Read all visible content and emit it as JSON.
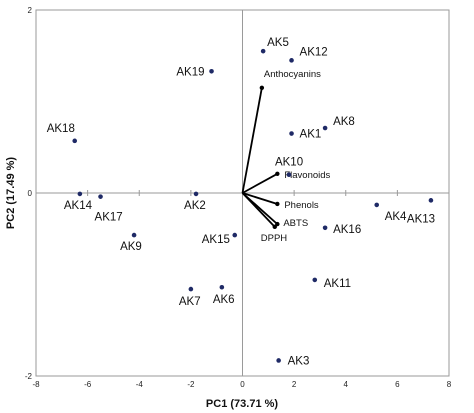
{
  "chart_data": {
    "type": "scatter",
    "subtype": "pca-biplot",
    "xlabel": "PC1 (73.71 %)",
    "ylabel": "PC2 (17.49 %)",
    "xlim": [
      -8,
      8
    ],
    "ylim": [
      -2,
      2
    ],
    "xticks": [
      "-8",
      "-6",
      "-4",
      "-2",
      "0",
      "2",
      "4",
      "6",
      "8"
    ],
    "yticks": [
      "2",
      "0",
      "-2"
    ],
    "x_axis_ticks_at": [
      -8,
      -6,
      -4,
      -2,
      0,
      2,
      4,
      6,
      8
    ],
    "y_axis_ticks_at": [
      2,
      0,
      -2
    ],
    "grid": false,
    "point_color": "#1f2a66",
    "vector_color": "#000000",
    "scores": [
      {
        "label": "AK5",
        "x": 0.8,
        "y": 1.55
      },
      {
        "label": "AK12",
        "x": 1.9,
        "y": 1.45
      },
      {
        "label": "AK19",
        "x": -1.2,
        "y": 1.33
      },
      {
        "label": "AK18",
        "x": -6.5,
        "y": 0.57
      },
      {
        "label": "AK1",
        "x": 1.9,
        "y": 0.65
      },
      {
        "label": "AK8",
        "x": 3.2,
        "y": 0.71
      },
      {
        "label": "AK10",
        "x": 1.8,
        "y": 0.2
      },
      {
        "label": "AK14",
        "x": -6.3,
        "y": -0.01
      },
      {
        "label": "AK17",
        "x": -5.5,
        "y": -0.04
      },
      {
        "label": "AK2",
        "x": -1.8,
        "y": -0.01
      },
      {
        "label": "AK9",
        "x": -4.2,
        "y": -0.46
      },
      {
        "label": "AK15",
        "x": -0.3,
        "y": -0.46
      },
      {
        "label": "AK16",
        "x": 3.2,
        "y": -0.38
      },
      {
        "label": "AK4",
        "x": 5.2,
        "y": -0.13
      },
      {
        "label": "AK13",
        "x": 7.3,
        "y": -0.08
      },
      {
        "label": "AK11",
        "x": 2.8,
        "y": -0.95
      },
      {
        "label": "AK7",
        "x": -2.0,
        "y": -1.05
      },
      {
        "label": "AK6",
        "x": -0.8,
        "y": -1.03
      },
      {
        "label": "AK3",
        "x": 1.4,
        "y": -1.83
      }
    ],
    "loadings": [
      {
        "label": "Anthocyanins",
        "x": 0.75,
        "y": 1.15
      },
      {
        "label": "Flavonoids",
        "x": 1.35,
        "y": 0.21
      },
      {
        "label": "Phenols",
        "x": 1.35,
        "y": -0.12
      },
      {
        "label": "ABTS",
        "x": 1.35,
        "y": -0.34
      },
      {
        "label": "DPPH",
        "x": 1.25,
        "y": -0.37
      }
    ]
  }
}
